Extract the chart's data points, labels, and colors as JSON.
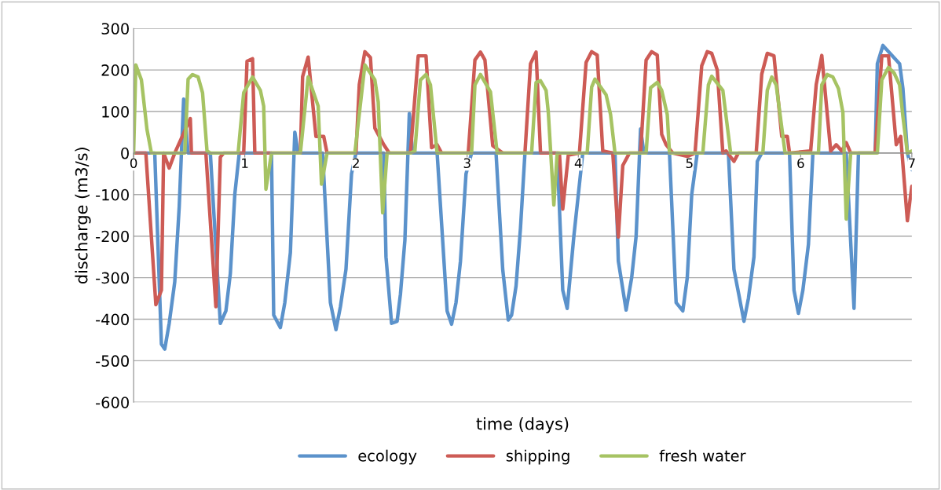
{
  "chart_data": {
    "type": "line",
    "xlabel": "time (days)",
    "ylabel": "discharge (m3/s)",
    "xlim": [
      0,
      7
    ],
    "xticks": [
      0,
      1,
      2,
      3,
      4,
      5,
      6,
      7
    ],
    "ylim": [
      -600,
      300
    ],
    "yticks": [
      -600,
      -500,
      -400,
      -300,
      -200,
      -100,
      0,
      100,
      200,
      300
    ],
    "grid": "y",
    "legend": "bottom",
    "marker": "none",
    "line_style": "solid",
    "series": [
      {
        "name": "ecology",
        "color": "#5b92cb",
        "x": [
          0,
          0.19,
          0.25,
          0.28,
          0.32,
          0.37,
          0.41,
          0.45,
          0.49,
          0.69,
          0.78,
          0.83,
          0.87,
          0.91,
          0.95,
          1.24,
          1.26,
          1.32,
          1.36,
          1.41,
          1.45,
          1.48,
          1.7,
          1.77,
          1.82,
          1.86,
          1.91,
          1.96,
          2.0,
          2.25,
          2.27,
          2.32,
          2.37,
          2.4,
          2.44,
          2.48,
          2.51,
          2.73,
          2.82,
          2.86,
          2.9,
          2.94,
          2.99,
          3.04,
          3.26,
          3.32,
          3.37,
          3.4,
          3.44,
          3.48,
          3.52,
          3.81,
          3.86,
          3.9,
          3.96,
          4.04,
          4.33,
          4.36,
          4.43,
          4.48,
          4.52,
          4.56,
          4.59,
          4.82,
          4.88,
          4.94,
          4.98,
          5.02,
          5.07,
          5.35,
          5.4,
          5.49,
          5.53,
          5.58,
          5.61,
          5.65,
          5.9,
          5.94,
          5.98,
          6.02,
          6.07,
          6.11,
          6.41,
          6.48,
          6.52,
          6.67,
          6.69,
          6.74,
          6.89,
          6.92,
          6.96,
          7.0
        ],
        "values": [
          0,
          0,
          -460,
          -472,
          -410,
          -310,
          -130,
          130,
          0,
          0,
          -410,
          -380,
          -290,
          -100,
          0,
          0,
          -390,
          -420,
          -360,
          -240,
          50,
          0,
          0,
          -360,
          -425,
          -370,
          -280,
          -50,
          0,
          0,
          -250,
          -410,
          -405,
          -340,
          -210,
          95,
          0,
          0,
          -380,
          -412,
          -360,
          -260,
          -50,
          0,
          0,
          -280,
          -402,
          -390,
          -320,
          -180,
          0,
          0,
          -330,
          -374,
          -200,
          0,
          0,
          -260,
          -378,
          -300,
          -200,
          58,
          0,
          0,
          -360,
          -380,
          -300,
          -100,
          0,
          0,
          -280,
          -405,
          -350,
          -250,
          -20,
          0,
          0,
          -330,
          -386,
          -330,
          -220,
          0,
          0,
          -374,
          0,
          0,
          215,
          259,
          215,
          155,
          0,
          -40
        ]
      },
      {
        "name": "shipping",
        "color": "#cd5b55",
        "x": [
          0,
          0.11,
          0.2,
          0.25,
          0.27,
          0.32,
          0.37,
          0.51,
          0.52,
          0.65,
          0.74,
          0.78,
          0.81,
          0.99,
          1.02,
          1.07,
          1.09,
          1.5,
          1.52,
          1.57,
          1.64,
          1.71,
          1.74,
          2.0,
          2.03,
          2.08,
          2.13,
          2.17,
          2.25,
          2.3,
          2.49,
          2.56,
          2.63,
          2.68,
          2.73,
          2.77,
          3.01,
          3.07,
          3.12,
          3.16,
          3.23,
          3.28,
          3.32,
          3.52,
          3.57,
          3.62,
          3.66,
          3.83,
          3.86,
          3.91,
          4.01,
          4.07,
          4.12,
          4.17,
          4.22,
          4.31,
          4.36,
          4.4,
          4.46,
          4.56,
          4.61,
          4.66,
          4.71,
          4.75,
          4.79,
          4.85,
          4.98,
          5.05,
          5.11,
          5.16,
          5.2,
          5.25,
          5.3,
          5.33,
          5.4,
          5.44,
          5.6,
          5.65,
          5.7,
          5.76,
          5.83,
          5.88,
          5.9,
          6.09,
          6.14,
          6.19,
          6.27,
          6.32,
          6.37,
          6.41,
          6.45,
          6.67,
          6.73,
          6.79,
          6.86,
          6.9,
          6.96,
          7.0
        ],
        "values": [
          0,
          0,
          -365,
          -330,
          0,
          -36,
          0,
          83,
          0,
          0,
          -370,
          -10,
          0,
          0,
          221,
          227,
          0,
          0,
          184,
          231,
          40,
          40,
          0,
          0,
          165,
          244,
          230,
          60,
          20,
          0,
          0,
          234,
          234,
          13,
          20,
          0,
          0,
          224,
          243,
          224,
          18,
          8,
          0,
          0,
          215,
          243,
          0,
          0,
          -135,
          -5,
          0,
          218,
          244,
          236,
          5,
          0,
          -202,
          -30,
          0,
          0,
          224,
          244,
          236,
          45,
          20,
          0,
          -8,
          0,
          210,
          244,
          240,
          200,
          0,
          5,
          -20,
          0,
          0,
          190,
          240,
          234,
          40,
          40,
          0,
          5,
          165,
          235,
          5,
          20,
          5,
          25,
          0,
          0,
          234,
          234,
          20,
          40,
          -163,
          -80
        ]
      },
      {
        "name": "fresh water",
        "color": "#a6c363",
        "x": [
          0,
          0.02,
          0.07,
          0.12,
          0.16,
          0.46,
          0.49,
          0.53,
          0.58,
          0.62,
          0.66,
          0.69,
          0.94,
          0.99,
          1.07,
          1.14,
          1.17,
          1.19,
          1.24,
          1.5,
          1.57,
          1.66,
          1.69,
          1.74,
          1.99,
          2.08,
          2.17,
          2.2,
          2.24,
          2.28,
          2.49,
          2.53,
          2.58,
          2.63,
          2.67,
          2.73,
          3.04,
          3.07,
          3.12,
          3.21,
          3.27,
          3.58,
          3.62,
          3.66,
          3.71,
          3.73,
          3.78,
          3.81,
          4.08,
          4.12,
          4.15,
          4.25,
          4.29,
          4.33,
          4.61,
          4.65,
          4.71,
          4.75,
          4.8,
          4.82,
          5.12,
          5.17,
          5.2,
          5.3,
          5.37,
          5.66,
          5.7,
          5.74,
          5.78,
          5.86,
          6.16,
          6.19,
          6.24,
          6.29,
          6.34,
          6.38,
          6.41,
          6.45,
          6.69,
          6.73,
          6.79,
          6.84,
          6.89,
          6.92,
          6.96,
          7.0
        ],
        "values": [
          0,
          212,
          176,
          57,
          0,
          0,
          178,
          189,
          183,
          145,
          5,
          0,
          0,
          145,
          183,
          151,
          113,
          -87,
          0,
          0,
          183,
          113,
          -75,
          0,
          0,
          212,
          176,
          123,
          -144,
          0,
          0,
          5,
          176,
          189,
          164,
          0,
          0,
          164,
          189,
          147,
          0,
          0,
          170,
          174,
          151,
          98,
          -125,
          0,
          0,
          159,
          178,
          140,
          93,
          0,
          0,
          157,
          170,
          151,
          93,
          0,
          0,
          164,
          185,
          151,
          0,
          0,
          151,
          183,
          164,
          0,
          0,
          164,
          189,
          183,
          155,
          98,
          -159,
          0,
          0,
          176,
          206,
          193,
          164,
          88,
          0,
          5
        ]
      }
    ]
  }
}
